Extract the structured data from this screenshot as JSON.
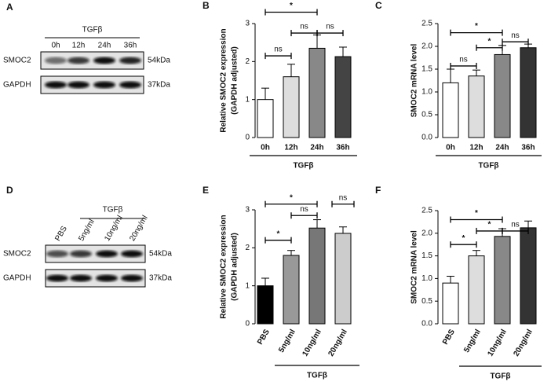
{
  "blots": [
    {
      "panel": "A",
      "group": "TGFβ",
      "lanes": [
        "0h",
        "12h",
        "24h",
        "36h"
      ],
      "rows": [
        {
          "protein": "SMOC2",
          "size": "54kDa"
        },
        {
          "protein": "GAPDH",
          "size": "37kDa"
        }
      ]
    },
    {
      "panel": "D",
      "group": "TGFβ",
      "lanes": [
        "PBS",
        "5ng/ml",
        "10ng/ml",
        "20ng/ml"
      ],
      "rows": [
        {
          "protein": "SMOC2",
          "size": "54kDa"
        },
        {
          "protein": "GAPDH",
          "size": "37kDa"
        }
      ]
    }
  ],
  "chart_data": [
    {
      "type": "bar",
      "panel": "B",
      "ylabel": [
        "Relative SMOC2 expression",
        "(GAPDH adjusted)"
      ],
      "categories": [
        "0h",
        "12h",
        "24h",
        "36h"
      ],
      "group": "TGFβ",
      "values": [
        1.0,
        1.6,
        2.35,
        2.13
      ],
      "errors": [
        0.3,
        0.33,
        0.35,
        0.25
      ],
      "colors": [
        "#ffffff",
        "#dddddd",
        "#888888",
        "#444444"
      ],
      "ylim": [
        0,
        3
      ],
      "yticks": [
        0,
        1,
        2,
        3
      ],
      "annotations": [
        {
          "text": "*",
          "from": 0,
          "to": 2,
          "y": 3.3
        },
        {
          "text": "ns",
          "from": 0,
          "to": 1,
          "y": 2.15
        },
        {
          "text": "ns",
          "from": 1,
          "to": 2,
          "y": 2.75
        },
        {
          "text": "ns",
          "from": 2,
          "to": 3,
          "y": 2.75
        }
      ]
    },
    {
      "type": "bar",
      "panel": "C",
      "ylabel": [
        "SMOC2 mRNA level"
      ],
      "categories": [
        "0h",
        "12h",
        "24h",
        "36h"
      ],
      "group": "TGFβ",
      "values": [
        1.2,
        1.35,
        1.82,
        1.97
      ],
      "errors": [
        0.3,
        0.13,
        0.2,
        0.08
      ],
      "colors": [
        "#ffffff",
        "#dddddd",
        "#888888",
        "#333333"
      ],
      "ylim": [
        0,
        2.5
      ],
      "yticks": [
        {
          "value": 0,
          "label": "0.0"
        },
        0.5,
        {
          "value": 1,
          "label": "1.0"
        },
        1.5,
        {
          "value": 2,
          "label": "2.0"
        },
        2.5
      ],
      "annotations": [
        {
          "text": "*",
          "from": 0,
          "to": 2,
          "y": 2.3
        },
        {
          "text": "ns",
          "from": 0,
          "to": 1,
          "y": 1.57
        },
        {
          "text": "*",
          "from": 1,
          "to": 2,
          "y": 1.97
        },
        {
          "text": "ns",
          "from": 2,
          "to": 3,
          "y": 2.1
        }
      ]
    },
    {
      "type": "bar",
      "panel": "E",
      "ylabel": [
        "Relative SMOC2 expression",
        "(GAPDH adjusted)"
      ],
      "categories": [
        "PBS",
        "5ng/ml",
        "10ng/ml",
        "20ng/ml"
      ],
      "group": "TGFβ",
      "values": [
        1.0,
        1.8,
        2.52,
        2.38
      ],
      "errors": [
        0.2,
        0.13,
        0.22,
        0.17
      ],
      "colors": [
        "#000000",
        "#999999",
        "#777777",
        "#cccccc"
      ],
      "ylim": [
        0,
        3
      ],
      "yticks": [
        0,
        1,
        2,
        3
      ],
      "annotations": [
        {
          "text": "*",
          "from": 0,
          "to": 2,
          "y": 3.15
        },
        {
          "text": "ns",
          "from": 3,
          "to": 3,
          "y": 3.15
        },
        {
          "text": "ns",
          "from": 1,
          "to": 2,
          "y": 2.85
        },
        {
          "text": "*",
          "from": 0,
          "to": 1,
          "y": 2.2
        }
      ]
    },
    {
      "type": "bar",
      "panel": "F",
      "ylabel": [
        "SMOC2 mRNA level"
      ],
      "categories": [
        "PBS",
        "5ng/ml",
        "10ng/ml",
        "20ng/ml"
      ],
      "group": "TGFβ",
      "values": [
        0.9,
        1.5,
        1.93,
        2.12
      ],
      "errors": [
        0.15,
        0.12,
        0.17,
        0.15
      ],
      "colors": [
        "#ffffff",
        "#dddddd",
        "#888888",
        "#333333"
      ],
      "ylim": [
        0,
        2.5
      ],
      "yticks": [
        {
          "value": 0,
          "label": "0.0"
        },
        0.5,
        {
          "value": 1,
          "label": "1.0"
        },
        1.5,
        {
          "value": 2,
          "label": "2.0"
        },
        2.5
      ],
      "annotations": [
        {
          "text": "*",
          "from": 0,
          "to": 2,
          "y": 2.3
        },
        {
          "text": "*",
          "from": 1,
          "to": 2,
          "y": 2.05
        },
        {
          "text": "ns",
          "from": 2,
          "to": 3,
          "y": 2.05
        },
        {
          "text": "*",
          "from": 0,
          "to": 1,
          "y": 1.75
        }
      ]
    }
  ]
}
